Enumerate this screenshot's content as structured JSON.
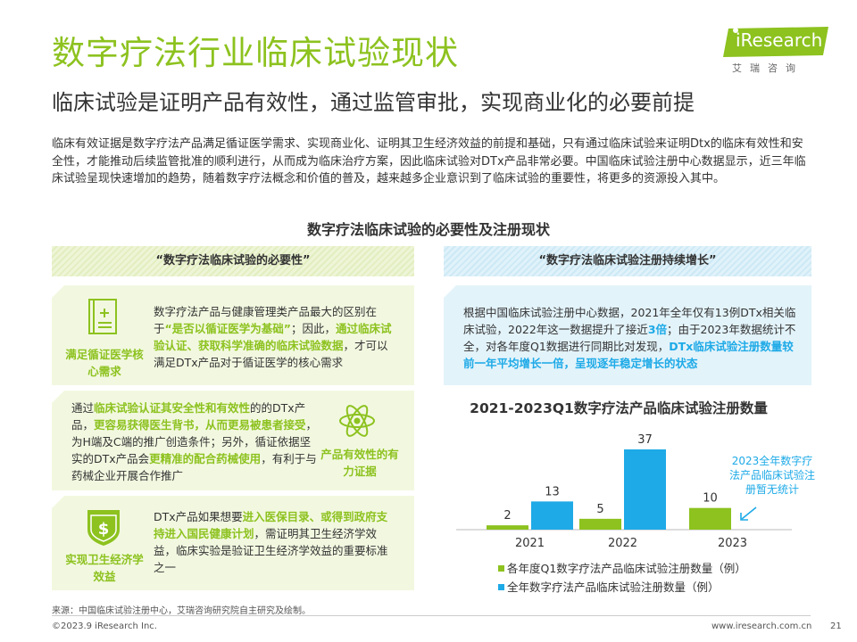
{
  "header": {
    "title": "数字疗法行业临床试验现状",
    "subtitle": "临床试验是证明产品有效性，通过监管审批，实现商业化的必要前提"
  },
  "logo": {
    "text": "iResearch",
    "sub": "艾瑞咨询",
    "color": "#8dc21f"
  },
  "intro": "临床有效证据是数字疗法产品满足循证医学需求、实现商业化、证明其卫生经济效益的前提和基础，只有通过临床试验来证明Dtx的临床有效性和安全性，才能推动后续监管批准的顺利进行，从而成为临床治疗方案，因此临床试验对DTx产品非常必要。中国临床试验注册中心数据显示，近三年临床试验呈现快速增加的趋势，随着数字疗法概念和价值的普及，越来越多企业意识到了临床试验的重要性，将更多的资源投入其中。",
  "section_title": "数字疗法临床试验的必要性及注册现状",
  "left": {
    "head": "“数字疗法临床试验的必要性”",
    "cards": [
      {
        "icon": "document-plus-icon",
        "label": "满足循证医学核心需求",
        "segments": [
          {
            "t": "数字疗法产品与健康管理类产品最大的区别在于"
          },
          {
            "t": "“是否以循证医学为基础”",
            "h": true
          },
          {
            "t": "；因此，"
          },
          {
            "t": "通过临床试验认证、获取科学准确的临床试验数据",
            "h": true
          },
          {
            "t": "，才可以满足DTx产品对于循证医学的核心需求"
          }
        ]
      },
      {
        "icon": "atom-icon",
        "label": "产品有效性的有力证据",
        "segments": [
          {
            "t": "通过"
          },
          {
            "t": "临床试验认证其安全性和有效性",
            "h": true
          },
          {
            "t": "的的DTx产品，"
          },
          {
            "t": "更容易获得医生背书，从而更易被患者接受",
            "h": true
          },
          {
            "t": "，为H端及C端的推广创造条件；另外，循证依据坚实的DTx产品会"
          },
          {
            "t": "更精准的配合药械使用",
            "h": true
          },
          {
            "t": "，有利于与药械企业开展合作推广"
          }
        ]
      },
      {
        "icon": "dollar-shield-icon",
        "label": "实现卫生经济学效益",
        "segments": [
          {
            "t": "DTx产品如果想要"
          },
          {
            "t": "进入医保目录、或得到政府支持进入国民健康计划",
            "h": true
          },
          {
            "t": "，需证明其卫生经济学效益，临床实验是验证卫生经济学效益的重要标准之一"
          }
        ]
      }
    ]
  },
  "right": {
    "head": "“数字疗法临床试验注册持续增长”",
    "segments": [
      {
        "t": "根据中国临床试验注册中心数据，2021年全年仅有13例DTx相关临床试验，2022年这一数据提升了接近"
      },
      {
        "t": "3倍",
        "b": true
      },
      {
        "t": "；由于2023年数据统计不全，对各年度Q1数据进行同期比对发现，"
      },
      {
        "t": "DTx临床试验注册数量较前一年平均增长一倍，呈现逐年稳定增长的状态",
        "b": true
      }
    ]
  },
  "chart_data": {
    "type": "bar",
    "title": "2021-2023Q1数字疗法产品临床试验注册数量",
    "categories": [
      "2021",
      "2022",
      "2023"
    ],
    "series": [
      {
        "name": "各年度Q1数字疗法产品临床试验注册数量（例）",
        "values": [
          2,
          5,
          10
        ],
        "color": "#8dc21f"
      },
      {
        "name": "全年数字疗法产品临床试验注册数量（例）",
        "values": [
          13,
          37,
          null
        ],
        "color": "#1eaae7"
      }
    ],
    "ylim": [
      0,
      37
    ],
    "grid": false,
    "legend": "bottom",
    "annotation": "2023全年数字疗法产品临床试验注册暂无统计"
  },
  "footer": {
    "source": "来源：中国临床试验注册中心，艾瑞咨询研究院自主研究及绘制。",
    "copyright": "©2023.9 iResearch Inc.",
    "website": "www.iresearch.com.cn",
    "page": "21"
  }
}
